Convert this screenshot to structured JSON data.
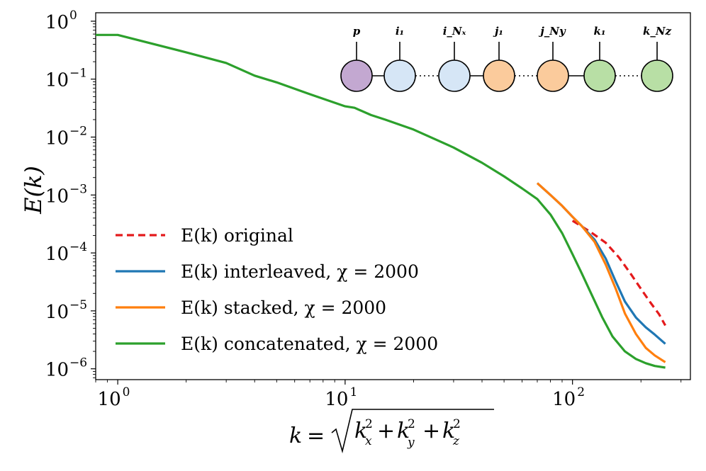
{
  "chart_data": {
    "type": "line",
    "xscale": "log",
    "yscale": "log",
    "xlim": [
      0.8,
      330
    ],
    "ylim": [
      6.5e-07,
      1.4
    ],
    "grid": false,
    "xticks": [
      1,
      10,
      100
    ],
    "yticks": [
      1e-06,
      1e-05,
      0.0001,
      0.001,
      0.01,
      0.1,
      1
    ],
    "xlabel": "k = √(k_x² + k_y² + k_z²)",
    "ylabel": "E(k)",
    "legend_position": "lower-left",
    "series": [
      {
        "name": "E(k) original",
        "color": "#e41a1c",
        "dash": true,
        "x": [
          100,
          120,
          140,
          160,
          180,
          200,
          220,
          240,
          256
        ],
        "y": [
          0.00036,
          0.00023,
          0.00015,
          8.4e-05,
          4.4e-05,
          2.4e-05,
          1.4e-05,
          8.8e-06,
          5.6e-06
        ]
      },
      {
        "name": "E(k) interleaved, χ = 2000",
        "color": "#1f77b4",
        "dash": false,
        "x": [
          70,
          80,
          90,
          100,
          110,
          125,
          140,
          155,
          170,
          190,
          210,
          230,
          256
        ],
        "y": [
          0.0016,
          0.001,
          0.00065,
          0.00042,
          0.00029,
          0.00017,
          8e-05,
          3.2e-05,
          1.45e-05,
          7.7e-06,
          5.2e-06,
          3.9e-06,
          2.7e-06
        ]
      },
      {
        "name": "E(k) stacked, χ = 2000",
        "color": "#ff7f0e",
        "dash": false,
        "x": [
          70,
          80,
          90,
          100,
          110,
          125,
          140,
          155,
          170,
          190,
          210,
          230,
          256
        ],
        "y": [
          0.0016,
          0.001,
          0.00065,
          0.00042,
          0.00029,
          0.000155,
          6.3e-05,
          2.4e-05,
          9e-06,
          4e-06,
          2.3e-06,
          1.7e-06,
          1.3e-06
        ]
      },
      {
        "name": "E(k) concatenated, χ = 2000",
        "color": "#2ca02c",
        "dash": false,
        "x": [
          0.8,
          1,
          2,
          3,
          4,
          5,
          7,
          10,
          11,
          13,
          15,
          20,
          30,
          40,
          50,
          60,
          70,
          80,
          90,
          100,
          110,
          120,
          135,
          150,
          170,
          190,
          210,
          230,
          256
        ],
        "y": [
          0.58,
          0.58,
          0.29,
          0.19,
          0.115,
          0.088,
          0.055,
          0.034,
          0.032,
          0.024,
          0.02,
          0.0135,
          0.0066,
          0.0036,
          0.0021,
          0.0013,
          0.00085,
          0.00046,
          0.00022,
          9.5e-05,
          4.4e-05,
          2.1e-05,
          7.8e-06,
          3.6e-06,
          2e-06,
          1.48e-06,
          1.25e-06,
          1.12e-06,
          1.05e-06
        ]
      }
    ],
    "inset": {
      "nodes": [
        {
          "label": "p",
          "color": "#c3a8d1"
        },
        {
          "label": "i₁",
          "color": "#d6e6f6"
        },
        {
          "label": "i_Nₓ",
          "color": "#d6e6f6"
        },
        {
          "label": "j₁",
          "color": "#fbcb9c"
        },
        {
          "label": "j_Ny",
          "color": "#fbcb9c"
        },
        {
          "label": "k₁",
          "color": "#b8dfa5"
        },
        {
          "label": "k_Nz",
          "color": "#b8dfa5"
        }
      ],
      "links": [
        "solid",
        "dotted",
        "solid",
        "dotted",
        "solid",
        "dotted"
      ]
    }
  }
}
